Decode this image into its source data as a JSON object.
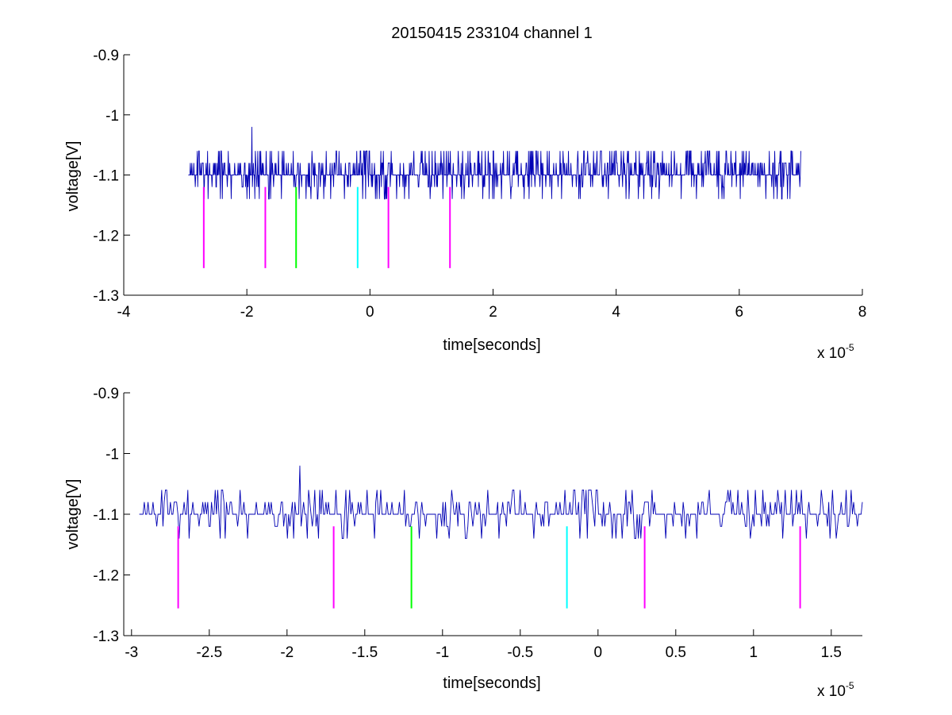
{
  "chart_data": [
    {
      "type": "line",
      "title": "20150415 233104 channel 1",
      "xlabel": "time[seconds]",
      "ylabel": "voltage[V]",
      "x_exponent_label": "x 10",
      "x_exponent": "-5",
      "xlim": [
        -4e-05,
        8e-05
      ],
      "ylim": [
        -1.3,
        -0.9
      ],
      "xticks": [
        -4e-05,
        -2e-05,
        0,
        2e-05,
        4e-05,
        6e-05,
        8e-05
      ],
      "xtick_labels": [
        "-4",
        "-2",
        "0",
        "2",
        "4",
        "6",
        "8"
      ],
      "yticks": [
        -0.9,
        -1,
        -1.1,
        -1.2,
        -1.3
      ],
      "ytick_labels": [
        "-0.9",
        "-1",
        "-1.1",
        "-1.2",
        "-1.3"
      ],
      "signal": {
        "color": "#0000b4",
        "x_start": -2.95e-05,
        "x_end": 7e-05,
        "baseline": -1.1,
        "levels": [
          -1.14,
          -1.12,
          -1.1,
          -1.08,
          -1.06
        ],
        "spike": {
          "x": -1.92e-05,
          "y": -1.02
        }
      },
      "markers": [
        {
          "x": -2.7e-05,
          "y_top": -1.12,
          "y_bottom": -1.255,
          "color": "#ff00ff"
        },
        {
          "x": -1.7e-05,
          "y_top": -1.12,
          "y_bottom": -1.255,
          "color": "#ff00ff"
        },
        {
          "x": -1.2e-05,
          "y_top": -1.12,
          "y_bottom": -1.255,
          "color": "#00ff00"
        },
        {
          "x": -2e-06,
          "y_top": -1.12,
          "y_bottom": -1.255,
          "color": "#00ffff"
        },
        {
          "x": 3e-06,
          "y_top": -1.12,
          "y_bottom": -1.255,
          "color": "#ff00ff"
        },
        {
          "x": 1.3e-05,
          "y_top": -1.12,
          "y_bottom": -1.255,
          "color": "#ff00ff"
        }
      ]
    },
    {
      "type": "line",
      "title": "",
      "xlabel": "time[seconds]",
      "ylabel": "voltage[V]",
      "x_exponent_label": "x 10",
      "x_exponent": "-5",
      "xlim": [
        -3.05e-05,
        1.7e-05
      ],
      "ylim": [
        -1.3,
        -0.9
      ],
      "xticks": [
        -3e-05,
        -2.5e-05,
        -2e-05,
        -1.5e-05,
        -1e-05,
        -5e-06,
        0,
        5e-06,
        1e-05,
        1.5e-05
      ],
      "xtick_labels": [
        "-3",
        "-2.5",
        "-2",
        "-1.5",
        "-1",
        "-0.5",
        "0",
        "0.5",
        "1",
        "1.5"
      ],
      "yticks": [
        -0.9,
        -1,
        -1.1,
        -1.2,
        -1.3
      ],
      "ytick_labels": [
        "-0.9",
        "-1",
        "-1.1",
        "-1.2",
        "-1.3"
      ],
      "signal": {
        "color": "#0000b4",
        "x_start": -2.95e-05,
        "x_end": 1.7e-05,
        "baseline": -1.1,
        "levels": [
          -1.14,
          -1.12,
          -1.1,
          -1.08,
          -1.06
        ],
        "spike": {
          "x": -1.92e-05,
          "y": -1.02
        }
      },
      "markers": [
        {
          "x": -2.7e-05,
          "y_top": -1.12,
          "y_bottom": -1.255,
          "color": "#ff00ff"
        },
        {
          "x": -1.7e-05,
          "y_top": -1.12,
          "y_bottom": -1.255,
          "color": "#ff00ff"
        },
        {
          "x": -1.2e-05,
          "y_top": -1.12,
          "y_bottom": -1.255,
          "color": "#00ff00"
        },
        {
          "x": -2e-06,
          "y_top": -1.12,
          "y_bottom": -1.255,
          "color": "#00ffff"
        },
        {
          "x": 3e-06,
          "y_top": -1.12,
          "y_bottom": -1.255,
          "color": "#ff00ff"
        },
        {
          "x": 1.3e-05,
          "y_top": -1.12,
          "y_bottom": -1.255,
          "color": "#ff00ff"
        }
      ]
    }
  ]
}
